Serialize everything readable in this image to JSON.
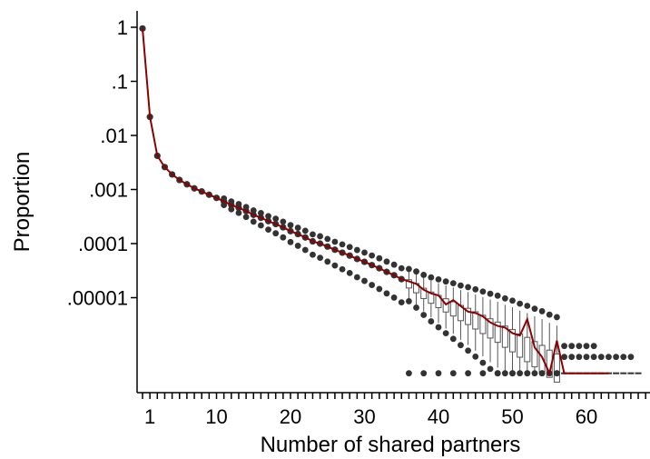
{
  "chart_data": {
    "type": "scatter",
    "title": "",
    "xlabel": "Number of shared partners",
    "ylabel": "Proportion",
    "x_scale": "linear",
    "y_scale": "log",
    "xlim": [
      0,
      68
    ],
    "ylim_log10": [
      -6.5,
      0.3
    ],
    "x_ticks": [
      {
        "value": 1,
        "label": "1"
      },
      {
        "value": 10,
        "label": "10"
      },
      {
        "value": 20,
        "label": "20"
      },
      {
        "value": 30,
        "label": "30"
      },
      {
        "value": 40,
        "label": "40"
      },
      {
        "value": 50,
        "label": "50"
      },
      {
        "value": 60,
        "label": "60"
      }
    ],
    "y_ticks": [
      {
        "value": 1,
        "label": "1"
      },
      {
        "value": 0.1,
        "label": ".1"
      },
      {
        "value": 0.01,
        "label": ".01"
      },
      {
        "value": 0.001,
        "label": ".001"
      },
      {
        "value": 0.0001,
        "label": ".0001"
      },
      {
        "value": 1e-05,
        "label": ".00001"
      }
    ],
    "grid": false,
    "legend": "none",
    "observed_line_color": "#8b0000",
    "simulated_point_color": "#333333",
    "observed": {
      "x": [
        0,
        1,
        2,
        3,
        4,
        5,
        6,
        7,
        8,
        9,
        10,
        11,
        12,
        13,
        14,
        15,
        16,
        17,
        18,
        19,
        20,
        21,
        22,
        23,
        24,
        25,
        26,
        27,
        28,
        29,
        30,
        31,
        32,
        33,
        34,
        35,
        36,
        37,
        38,
        39,
        40,
        41,
        42,
        43,
        44,
        45,
        46,
        47,
        48,
        49,
        50,
        51,
        52,
        53,
        54,
        55,
        56,
        57,
        58,
        59,
        60,
        61,
        62,
        63
      ],
      "y": [
        0.95,
        0.022,
        0.0042,
        0.0026,
        0.0019,
        0.0015,
        0.00125,
        0.00105,
        0.00092,
        0.0008,
        0.0007,
        0.0006,
        0.00052,
        0.00046,
        0.0004,
        0.00034,
        0.0003,
        0.00026,
        0.00023,
        0.0002,
        0.00017,
        0.00015,
        0.00013,
        0.00011,
        0.0001,
        8.8e-05,
        7.7e-05,
        6.8e-05,
        6e-05,
        5.2e-05,
        4.6e-05,
        4e-05,
        3.5e-05,
        3e-05,
        2.6e-05,
        2.2e-05,
        2e-05,
        1.8e-05,
        1.4e-05,
        1.2e-05,
        1.1e-05,
        7.5e-06,
        9e-06,
        7e-06,
        5.5e-06,
        5.2e-06,
        4.5e-06,
        3.5e-06,
        3e-06,
        2.8e-06,
        2.2e-06,
        2e-06,
        4e-06,
        1.2e-06,
        8e-07,
        4e-07,
        1.6e-06,
        4e-07,
        4e-07,
        4e-07,
        4e-07,
        4e-07,
        4e-07,
        4e-07
      ]
    },
    "simulated_boxplots": {
      "x": [
        0,
        1,
        2,
        3,
        4,
        5,
        6,
        7,
        8,
        9,
        10,
        11,
        12,
        13,
        14,
        15,
        16,
        17,
        18,
        19,
        20,
        21,
        22,
        23,
        24,
        25,
        26,
        27,
        28,
        29,
        30,
        31,
        32,
        33,
        34,
        35,
        36,
        37,
        38,
        39,
        40,
        41,
        42,
        43,
        44,
        45,
        46,
        47,
        48,
        49,
        50,
        51,
        52,
        53,
        54,
        55,
        56,
        57,
        58,
        59,
        60,
        61,
        62,
        63,
        64,
        65,
        66,
        67
      ],
      "median": [
        0.95,
        0.022,
        0.0042,
        0.0026,
        0.0019,
        0.0015,
        0.00125,
        0.00105,
        0.00092,
        0.0008,
        0.0007,
        0.0006,
        0.00052,
        0.00046,
        0.0004,
        0.00034,
        0.0003,
        0.00026,
        0.00023,
        0.0002,
        0.00017,
        0.00015,
        0.00013,
        0.00011,
        0.0001,
        8.8e-05,
        7.7e-05,
        6.8e-05,
        6e-05,
        5.2e-05,
        4.6e-05,
        4e-05,
        3.5e-05,
        3e-05,
        2.6e-05,
        2.2e-05,
        1.8e-05,
        1.5e-05,
        1.2e-05,
        1e-05,
        8.5e-06,
        7.2e-06,
        6.2e-06,
        5.2e-06,
        4.5e-06,
        3.8e-06,
        3.2e-06,
        2.7e-06,
        2.3e-06,
        1.9e-06,
        1.6e-06,
        1.3e-06,
        1.1e-06,
        9e-07,
        7.5e-07,
        6e-07,
        5e-07,
        4e-07,
        4e-07,
        4e-07,
        4e-07,
        4e-07,
        4e-07,
        4e-07,
        4e-07,
        4e-07,
        4e-07,
        4e-07
      ]
    }
  }
}
